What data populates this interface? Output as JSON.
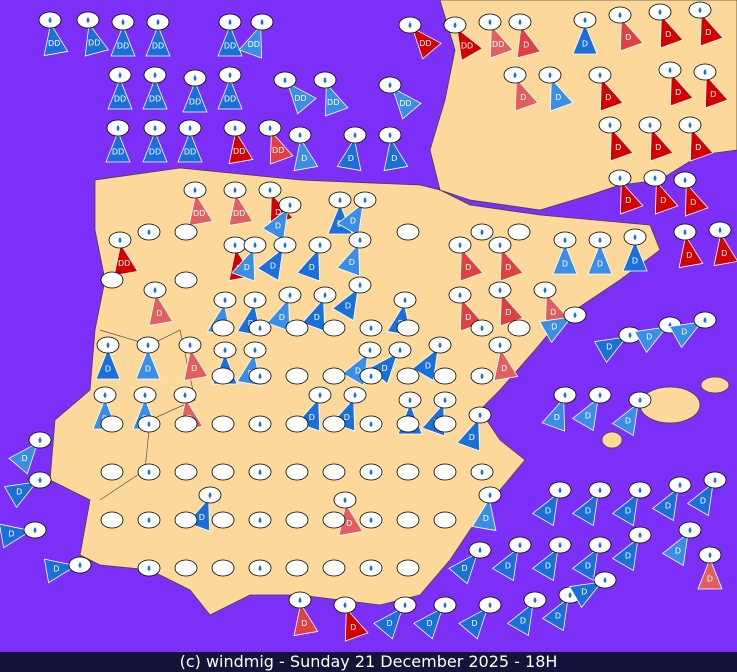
{
  "map": {
    "markers": [
      "DD",
      "DD",
      "DD",
      "DD",
      "DD",
      "DD",
      "DD",
      "DD",
      "DD",
      "D",
      "D",
      "D",
      "D",
      "D",
      "DD",
      "DD",
      "DD",
      "DD",
      "DD",
      "DD",
      "DD",
      "D",
      "D",
      "D",
      "D",
      "D",
      "DD",
      "DD",
      "DD",
      "DD",
      "DD",
      "D",
      "D",
      "D",
      "D",
      "D",
      "D",
      "DD",
      "DD",
      "D",
      "D",
      "D",
      "D",
      "D",
      "D",
      "D",
      "DD",
      "D",
      "D",
      "D",
      "D",
      "D",
      "D",
      "D",
      "D",
      "D",
      "D",
      "D",
      "D",
      "D",
      "D",
      "D",
      "D",
      "D",
      "D",
      "D",
      "D",
      "D",
      "D",
      "D",
      "D",
      "D",
      "D",
      "D",
      "D",
      "D",
      "D",
      "D",
      "D",
      "D",
      "D",
      "D",
      "D",
      "D",
      "D",
      "D",
      "D",
      "D",
      "D",
      "D",
      "D",
      "D",
      "D",
      "D",
      "D",
      "D",
      "D",
      "D",
      "D",
      "D",
      "D",
      "D",
      "D",
      "D",
      "D",
      "D",
      "D",
      "D",
      "D",
      "D",
      "D",
      "D",
      "D",
      "D",
      "D",
      "D",
      "D",
      "D",
      "D",
      "D"
    ]
  },
  "footer": {
    "text": "(c) windmig - Sunday 21 December 2025 - 18H"
  }
}
